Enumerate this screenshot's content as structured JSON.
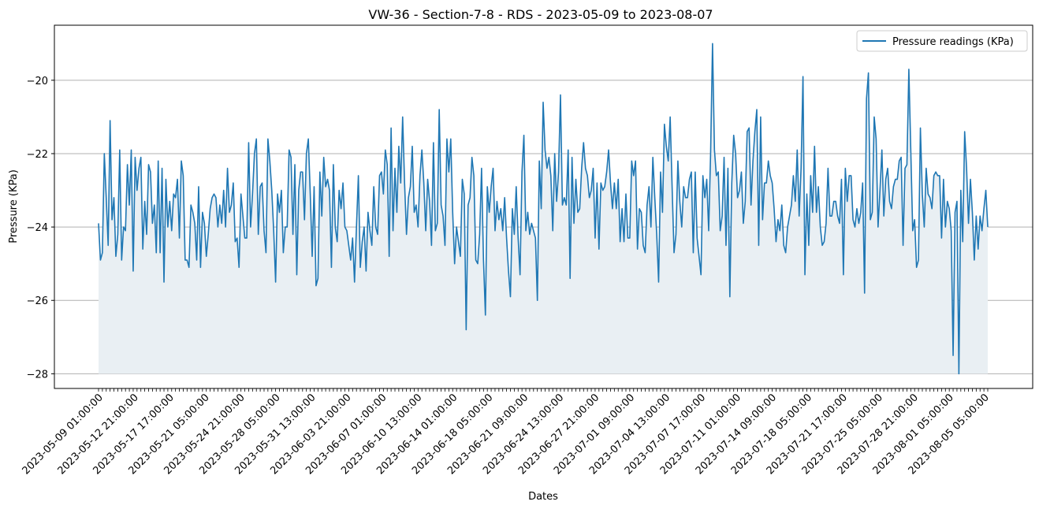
{
  "chart_data": {
    "type": "line",
    "title": "VW-36 - Section-7-8 - RDS - 2023-05-09 to 2023-08-07",
    "xlabel": "Dates",
    "ylabel": "Pressure (KPa)",
    "xlim": [
      "2023-05-09",
      "2023-08-07"
    ],
    "ylim": [
      -28.4,
      -18.5
    ],
    "y_ticks": [
      -28,
      -26,
      -24,
      -22,
      -20
    ],
    "y_grid": true,
    "x_grid": false,
    "legend_position": "top-right",
    "fill_under_line": true,
    "fill_base": -28,
    "x_tick_labels": [
      "2023-05-09 01:00:00",
      "2023-05-12 21:00:00",
      "2023-05-17 17:00:00",
      "2023-05-21 05:00:00",
      "2023-05-24 21:00:00",
      "2023-05-28 05:00:00",
      "2023-05-31 13:00:00",
      "2023-06-03 21:00:00",
      "2023-06-07 01:00:00",
      "2023-06-10 13:00:00",
      "2023-06-14 01:00:00",
      "2023-06-18 05:00:00",
      "2023-06-21 09:00:00",
      "2023-06-24 13:00:00",
      "2023-06-27 21:00:00",
      "2023-07-01 09:00:00",
      "2023-07-04 13:00:00",
      "2023-07-07 17:00:00",
      "2023-07-11 01:00:00",
      "2023-07-14 09:00:00",
      "2023-07-18 05:00:00",
      "2023-07-21 17:00:00",
      "2023-07-25 05:00:00",
      "2023-07-28 21:00:00",
      "2023-08-01 05:00:00",
      "2023-08-05 05:00:00"
    ],
    "series": [
      {
        "name": "Pressure readings (KPa)",
        "color": "#1f77b4",
        "fill_color": "#e9eff3",
        "values": [
          -23.9,
          -24.9,
          -24.7,
          -22.0,
          -23.2,
          -24.5,
          -21.1,
          -23.8,
          -23.2,
          -24.8,
          -24.2,
          -21.9,
          -24.9,
          -24.0,
          -24.1,
          -22.3,
          -23.4,
          -21.9,
          -25.2,
          -22.1,
          -23.0,
          -22.4,
          -22.1,
          -24.6,
          -23.3,
          -24.2,
          -22.3,
          -22.5,
          -23.9,
          -23.4,
          -24.7,
          -22.2,
          -24.7,
          -22.4,
          -25.5,
          -22.7,
          -24.0,
          -23.3,
          -24.1,
          -23.1,
          -23.2,
          -22.7,
          -24.3,
          -22.2,
          -22.6,
          -24.9,
          -24.9,
          -25.1,
          -23.4,
          -23.6,
          -23.9,
          -24.9,
          -22.9,
          -25.1,
          -23.6,
          -23.9,
          -24.8,
          -24.2,
          -23.5,
          -23.2,
          -23.1,
          -23.2,
          -24.0,
          -23.4,
          -23.9,
          -23.0,
          -24.0,
          -22.4,
          -23.6,
          -23.4,
          -22.8,
          -24.4,
          -24.3,
          -25.1,
          -23.1,
          -23.7,
          -24.3,
          -24.3,
          -21.7,
          -24.0,
          -23.1,
          -22.0,
          -21.6,
          -24.2,
          -22.9,
          -22.8,
          -24.1,
          -24.7,
          -21.6,
          -22.2,
          -23.0,
          -24.1,
          -25.5,
          -23.1,
          -23.6,
          -23.0,
          -24.7,
          -24.0,
          -24.0,
          -21.9,
          -22.1,
          -24.2,
          -22.3,
          -25.3,
          -23.0,
          -22.5,
          -22.5,
          -23.8,
          -22.0,
          -21.6,
          -23.1,
          -24.8,
          -22.9,
          -25.6,
          -25.4,
          -22.5,
          -23.7,
          -22.1,
          -22.9,
          -22.7,
          -23.0,
          -25.1,
          -22.3,
          -24.0,
          -24.4,
          -23.0,
          -23.5,
          -22.8,
          -24.0,
          -24.1,
          -24.5,
          -24.9,
          -24.3,
          -25.5,
          -24.0,
          -22.6,
          -25.1,
          -24.4,
          -24.0,
          -25.2,
          -23.6,
          -24.1,
          -24.5,
          -22.9,
          -24.0,
          -24.2,
          -22.6,
          -22.5,
          -23.1,
          -21.9,
          -22.3,
          -24.8,
          -21.3,
          -24.1,
          -22.4,
          -23.6,
          -21.8,
          -22.8,
          -21.0,
          -22.8,
          -24.2,
          -23.2,
          -22.9,
          -21.8,
          -23.6,
          -23.4,
          -24.0,
          -22.6,
          -21.9,
          -22.8,
          -24.1,
          -22.7,
          -23.3,
          -24.5,
          -21.7,
          -24.1,
          -23.9,
          -20.8,
          -23.4,
          -23.7,
          -24.5,
          -21.6,
          -22.5,
          -21.6,
          -23.6,
          -25.0,
          -24.0,
          -24.4,
          -24.8,
          -22.7,
          -23.1,
          -26.8,
          -23.4,
          -23.2,
          -22.1,
          -22.6,
          -24.9,
          -25.0,
          -24.2,
          -22.4,
          -24.9,
          -26.4,
          -22.9,
          -23.6,
          -22.9,
          -22.4,
          -24.1,
          -23.3,
          -23.8,
          -23.5,
          -24.1,
          -23.2,
          -24.3,
          -25.2,
          -25.9,
          -23.5,
          -24.2,
          -22.9,
          -24.3,
          -25.3,
          -22.5,
          -21.5,
          -24.1,
          -23.6,
          -24.2,
          -23.9,
          -24.1,
          -24.3,
          -26.0,
          -22.2,
          -23.5,
          -20.6,
          -21.9,
          -22.4,
          -22.1,
          -22.6,
          -24.1,
          -22.0,
          -23.3,
          -22.5,
          -20.4,
          -23.4,
          -23.2,
          -23.4,
          -21.9,
          -25.4,
          -22.1,
          -23.9,
          -22.7,
          -23.6,
          -23.5,
          -22.4,
          -21.7,
          -22.4,
          -22.6,
          -23.2,
          -23.0,
          -22.4,
          -24.3,
          -22.8,
          -24.6,
          -22.8,
          -23.0,
          -22.9,
          -22.5,
          -21.9,
          -22.8,
          -23.5,
          -22.8,
          -23.5,
          -22.7,
          -24.4,
          -23.5,
          -24.4,
          -23.1,
          -24.3,
          -24.3,
          -22.2,
          -22.6,
          -22.2,
          -24.6,
          -23.5,
          -23.6,
          -24.5,
          -24.7,
          -23.4,
          -22.9,
          -24.0,
          -22.1,
          -23.2,
          -24.2,
          -25.5,
          -22.5,
          -23.6,
          -21.2,
          -21.8,
          -22.2,
          -21.0,
          -22.9,
          -24.7,
          -24.2,
          -22.2,
          -23.3,
          -24.0,
          -22.9,
          -23.2,
          -23.2,
          -22.7,
          -22.5,
          -24.7,
          -22.5,
          -24.3,
          -24.8,
          -25.3,
          -22.6,
          -23.2,
          -22.7,
          -24.1,
          -22.0,
          -19.0,
          -21.9,
          -22.6,
          -22.5,
          -24.1,
          -23.7,
          -22.1,
          -24.5,
          -22.4,
          -25.9,
          -22.8,
          -21.5,
          -22.0,
          -23.2,
          -23.0,
          -22.5,
          -23.9,
          -23.3,
          -21.4,
          -21.3,
          -23.4,
          -22.2,
          -21.4,
          -20.8,
          -24.5,
          -21.0,
          -23.8,
          -22.8,
          -22.8,
          -22.2,
          -22.6,
          -22.8,
          -23.5,
          -24.4,
          -23.8,
          -24.1,
          -23.4,
          -24.5,
          -24.7,
          -24.0,
          -23.7,
          -23.4,
          -22.6,
          -23.3,
          -21.9,
          -23.7,
          -22.4,
          -19.9,
          -25.3,
          -23.1,
          -24.5,
          -22.6,
          -23.6,
          -21.8,
          -23.6,
          -22.9,
          -24.0,
          -24.5,
          -24.4,
          -23.9,
          -22.4,
          -23.7,
          -23.7,
          -23.3,
          -23.3,
          -23.7,
          -23.9,
          -22.7,
          -25.3,
          -22.4,
          -23.3,
          -22.6,
          -22.6,
          -23.8,
          -24.0,
          -23.5,
          -23.9,
          -23.6,
          -22.8,
          -25.8,
          -20.5,
          -19.8,
          -23.8,
          -23.6,
          -21.0,
          -21.6,
          -24.0,
          -23.0,
          -21.9,
          -23.7,
          -22.7,
          -22.4,
          -23.3,
          -23.5,
          -22.9,
          -22.7,
          -22.7,
          -22.2,
          -22.1,
          -24.5,
          -22.4,
          -22.3,
          -19.7,
          -21.9,
          -24.1,
          -23.8,
          -25.1,
          -24.9,
          -21.3,
          -23.1,
          -24.0,
          -22.4,
          -23.1,
          -23.2,
          -23.5,
          -22.6,
          -22.5,
          -22.6,
          -22.6,
          -24.3,
          -22.7,
          -24.0,
          -23.3,
          -23.5,
          -24.1,
          -27.5,
          -23.6,
          -23.3,
          -28.0,
          -23.0,
          -24.4,
          -21.4,
          -22.4,
          -23.9,
          -22.7,
          -23.6,
          -24.9,
          -23.7,
          -24.6,
          -23.7,
          -24.1,
          -23.5,
          -23.0,
          -24.0
        ]
      }
    ]
  }
}
